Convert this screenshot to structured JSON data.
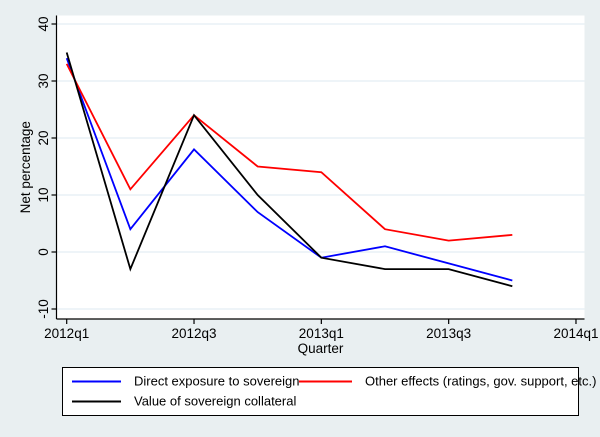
{
  "figure": {
    "background_color": "#e9eff1",
    "plot_background_color": "#ffffff",
    "grid_color": "#e4eef3",
    "axis_color": "#000000",
    "legend_border_color": "#000000"
  },
  "chart_data": {
    "type": "line",
    "title": "",
    "xlabel": "Quarter",
    "ylabel": "Net percentage",
    "x_categories": [
      "2012q1",
      "2012q2",
      "2012q3",
      "2012q4",
      "2013q1",
      "2013q2",
      "2013q3",
      "2013q4"
    ],
    "x_tick_labels": [
      "2012q1",
      "2012q3",
      "2013q1",
      "2013q3",
      "2014q1"
    ],
    "x_tick_quarter_offsets": [
      0,
      2,
      4,
      6,
      8
    ],
    "x_range": [
      "2012q1",
      "2014q1"
    ],
    "y_ticks": [
      40,
      30,
      20,
      10,
      0,
      -10
    ],
    "ylim": [
      -10,
      40
    ],
    "grid": "horizontal",
    "legend_position": "bottom-box",
    "series": [
      {
        "name": "Direct exposure to sovereign",
        "color": "#0000ff",
        "values": [
          34,
          4,
          18,
          7,
          -1,
          1,
          -2,
          -5
        ]
      },
      {
        "name": "Other effects (ratings, gov. support, etc.)",
        "color": "#ff0000",
        "values": [
          33,
          11,
          24,
          15,
          14,
          4,
          2,
          3
        ]
      },
      {
        "name": "Value of sovereign collateral",
        "color": "#000000",
        "values": [
          35,
          -3,
          24,
          10,
          -1,
          -3,
          -3,
          -6
        ]
      }
    ]
  }
}
